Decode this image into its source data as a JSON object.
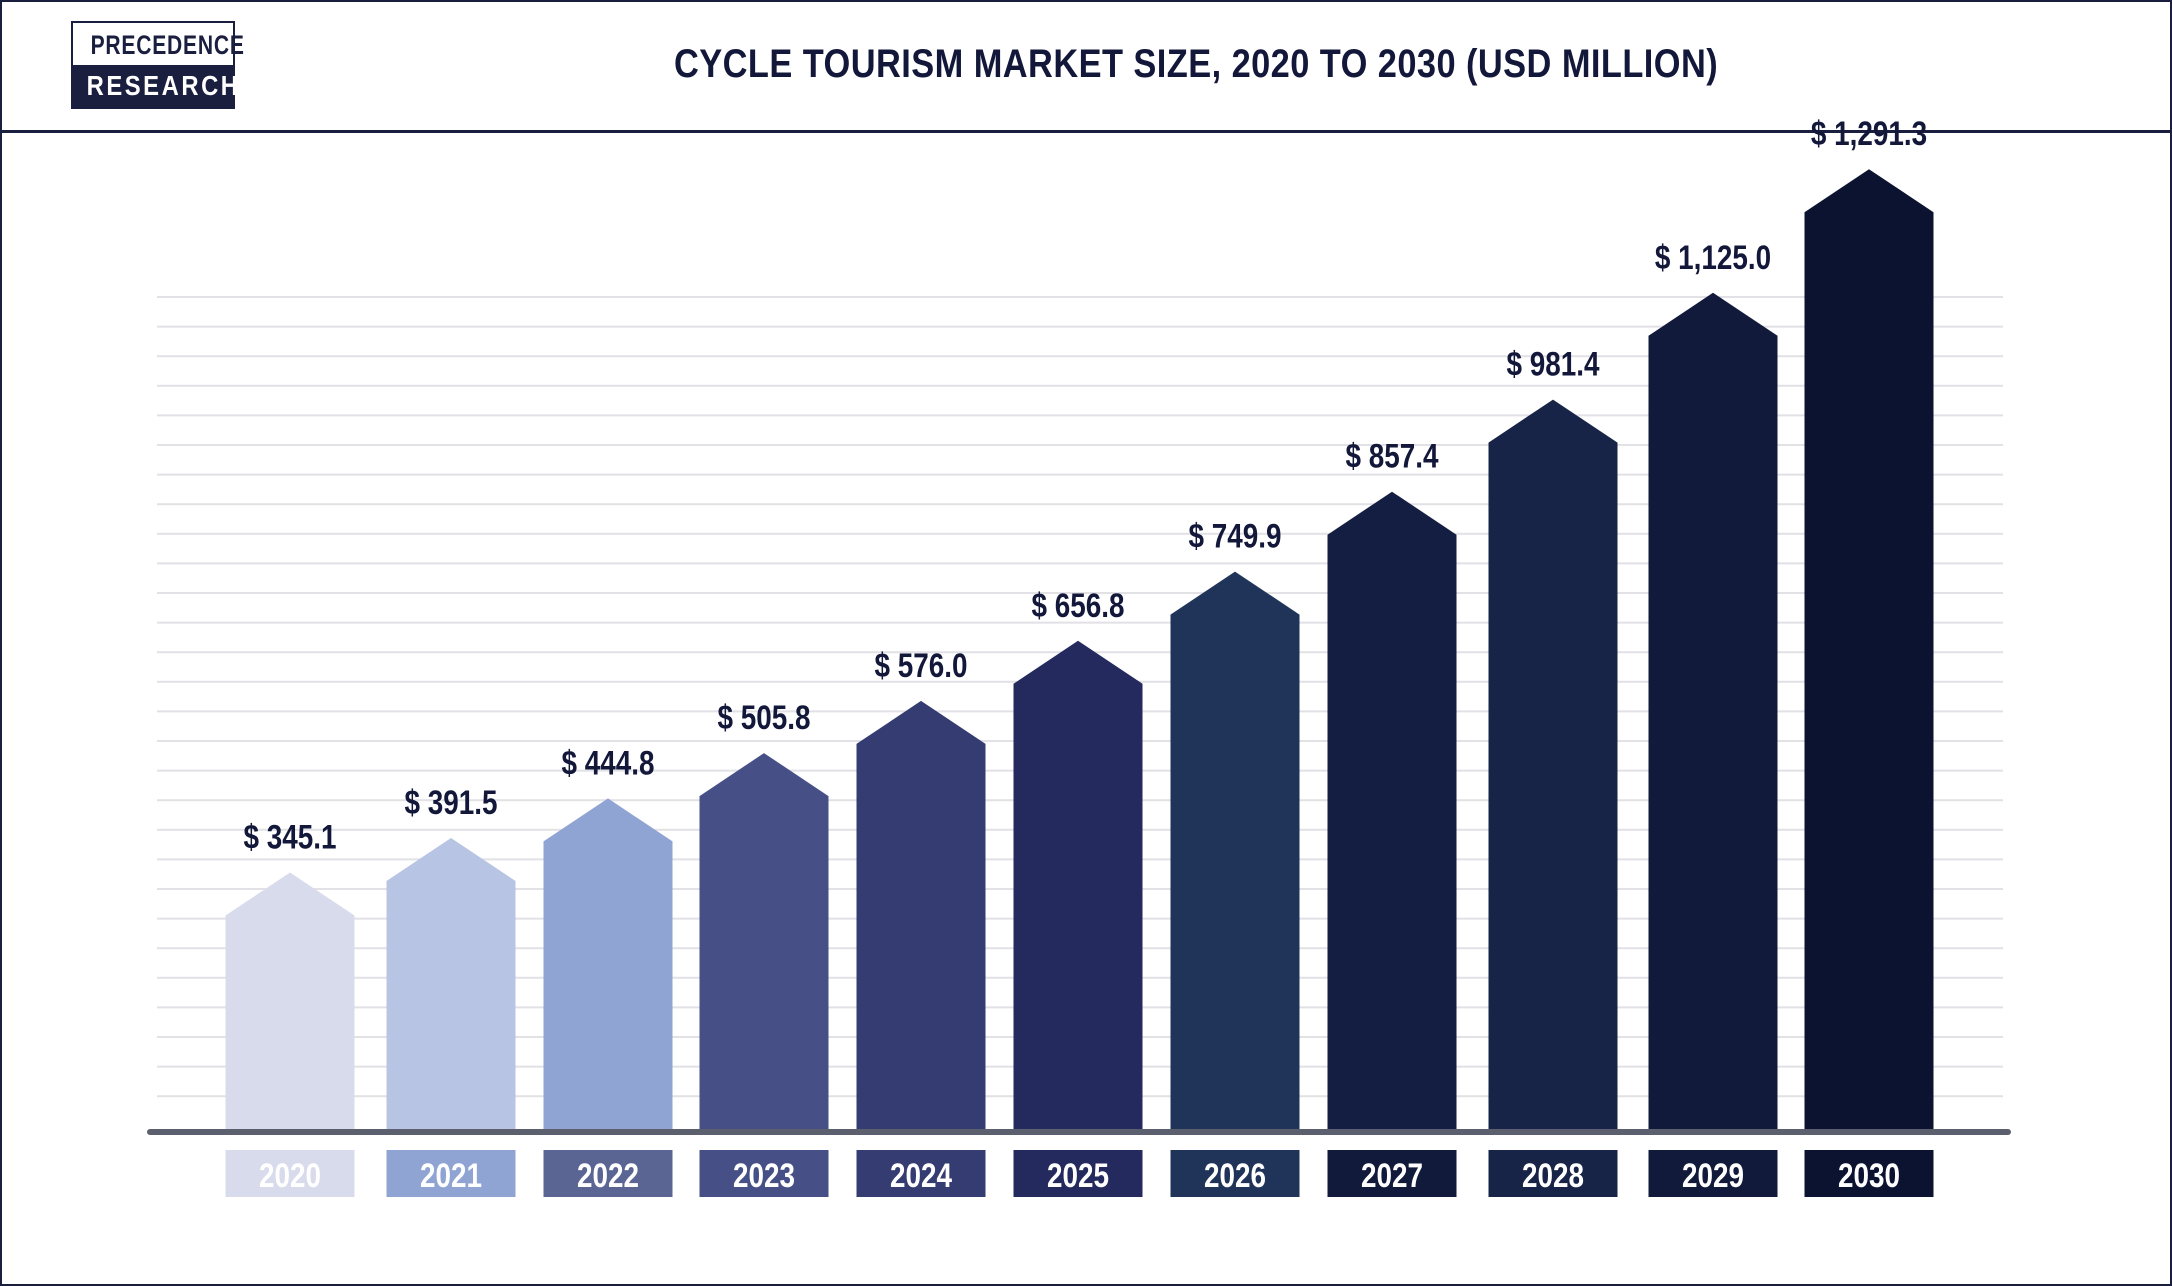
{
  "header": {
    "logo_top": "PRECEDENCE",
    "logo_bottom": "RESEARCH",
    "title": "CYCLE TOURISM MARKET SIZE, 2020 TO 2030 (USD MILLION)"
  },
  "chart_data": {
    "type": "bar",
    "title": "CYCLE TOURISM MARKET SIZE, 2020 TO 2030 (USD MILLION)",
    "xlabel": "",
    "ylabel": "",
    "categories": [
      "2020",
      "2021",
      "2022",
      "2023",
      "2024",
      "2025",
      "2026",
      "2027",
      "2028",
      "2029",
      "2030"
    ],
    "values": [
      345.1,
      391.5,
      444.8,
      505.8,
      576.0,
      656.8,
      749.9,
      857.4,
      981.4,
      1125.0,
      1291.3
    ],
    "value_labels": [
      "$ 345.1",
      "$ 391.5",
      "$ 444.8",
      "$ 505.8",
      "$ 576.0",
      "$ 656.8",
      "$ 749.9",
      "$ 857.4",
      "$ 981.4",
      "$ 1,125.0",
      "$ 1,291.3"
    ],
    "bar_colors": [
      "#d8dbeb",
      "#b8c4e3",
      "#8fa4d3",
      "#465086",
      "#353c72",
      "#242a5e",
      "#1f3458",
      "#141d42",
      "#172347",
      "#111a3a",
      "#0b1330"
    ],
    "label_box_colors": [
      "#d8dbeb",
      "#8fa4d3",
      "#5a6594",
      "#465086",
      "#353c72",
      "#242a5e",
      "#1f3458",
      "#111a3a",
      "#172347",
      "#111a3a",
      "#0b1330"
    ],
    "label_text_color": "#ffffff",
    "value_text_color": "#13183a",
    "gridline_color": "#e1e1e6",
    "axis_color": "#5c5f6e",
    "grid": true,
    "legend": "none"
  }
}
